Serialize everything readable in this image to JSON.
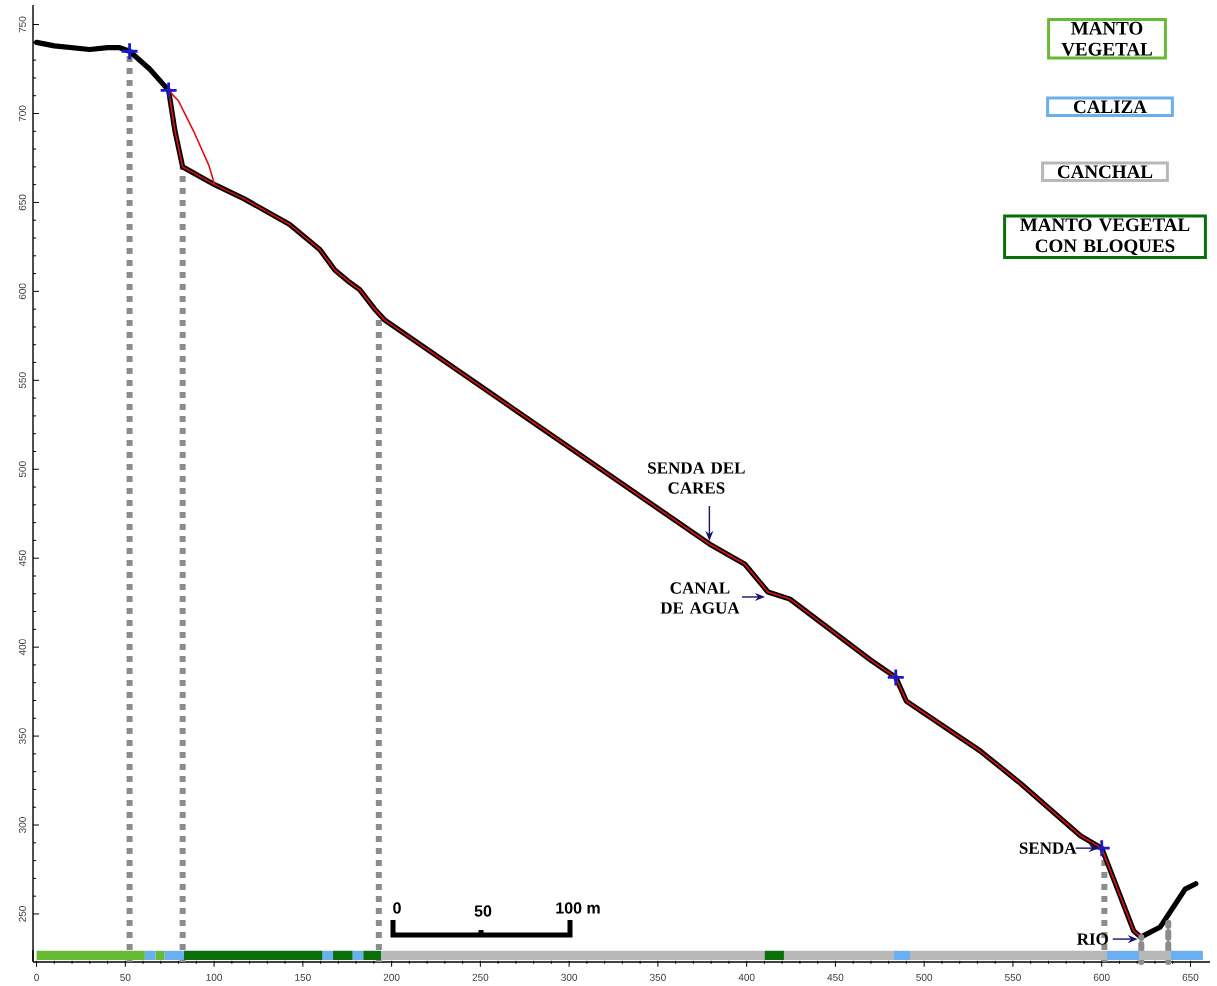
{
  "chart_data": [
    {
      "type": "line",
      "xlim": [
        -2,
        661
      ],
      "ylim": [
        223,
        761
      ],
      "yticks": [
        250,
        300,
        350,
        400,
        450,
        500,
        550,
        600,
        650,
        700,
        750
      ],
      "tick_labels": "y",
      "series": [
        {
          "color": "#000000",
          "x": [
            0,
            10,
            20,
            30,
            40,
            46.8,
            52.4,
            63.7,
            74.4,
            78,
            82.3,
            100.3,
            117,
            142.6,
            159.5,
            168,
            176.4,
            182,
            190.5,
            196,
            379,
            399,
            412,
            424.4,
            469.5,
            484,
            489.9,
            531.6,
            554,
            588,
            600,
            618,
            622,
            633,
            641.5,
            647,
            653
          ],
          "values": [
            740,
            738,
            737,
            736,
            737,
            737,
            735,
            725,
            713,
            690,
            670,
            660,
            652,
            637.6,
            623.6,
            612,
            605,
            601,
            590,
            584,
            458,
            446.6,
            431,
            427,
            393,
            383,
            369.7,
            341.6,
            323.6,
            294,
            287,
            240.5,
            237,
            242.7,
            255.6,
            264,
            267
          ]
        },
        {
          "color": "#e01010",
          "x": [
            74.4,
            78,
            82.3,
            100.3,
            117,
            142.6,
            159.5,
            168,
            176.4,
            182,
            190.5,
            196,
            379,
            399,
            412,
            424.4,
            469.5,
            484,
            489.9,
            531.6,
            554,
            588,
            600,
            618,
            622
          ],
          "values": [
            713,
            690,
            670,
            660,
            652,
            637.6,
            623.6,
            612,
            605,
            601,
            590,
            584,
            458,
            446.6,
            431,
            427,
            393,
            383,
            369.7,
            341.6,
            323.6,
            294,
            287,
            240.5,
            237
          ]
        },
        {
          "color": "#e01010",
          "x": [
            74.4,
            80,
            88.5,
            97,
            100.3
          ],
          "values": [
            713,
            707,
            690,
            671,
            660
          ]
        },
        {
          "line_style": "dotted",
          "color": "#8c8c8c",
          "x": [
            622.3,
            622.3
          ],
          "values": [
            223,
            237
          ]
        },
        {
          "line_style": "dotted",
          "color": "#8c8c8c",
          "x": [
            637.5,
            637.5
          ],
          "values": [
            223,
            245
          ]
        },
        {
          "type": "scatter",
          "marker": "cross",
          "color": "#1a1acc",
          "x": [
            52.4,
            74.4,
            484,
            600
          ],
          "values": [
            735,
            713,
            383,
            287
          ]
        }
      ],
      "ref_lines": [
        {
          "axis": "x",
          "value": 52.4,
          "color": "#8c8c8c",
          "line_style": "dotted"
        },
        {
          "axis": "x",
          "value": 82.3,
          "color": "#8c8c8c",
          "line_style": "dotted"
        },
        {
          "axis": "x",
          "value": 192.8,
          "color": "#8c8c8c",
          "line_style": "dotted"
        },
        {
          "axis": "x",
          "value": 601.5,
          "color": "#8c8c8c",
          "line_style": "dotted"
        }
      ],
      "annotations": [
        {
          "text": "SENDA DEL CARES",
          "x": 379,
          "y": 458
        },
        {
          "text": "CANAL DE AGUA",
          "x": 412,
          "y": 431
        },
        {
          "text": "SENDA",
          "x": 600,
          "y": 287
        },
        {
          "text": "RIO",
          "x": 622,
          "y": 237
        },
        "0",
        "50",
        "100 m"
      ]
    },
    {
      "type": "bar",
      "orientation": "horizontal",
      "stacked": true,
      "categories": [
        null
      ],
      "xlim": [
        -2,
        661
      ],
      "xticks": [
        0,
        50,
        100,
        150,
        200,
        250,
        300,
        350,
        400,
        450,
        500,
        550,
        600,
        650
      ],
      "tick_labels": "x",
      "legend": "top right",
      "series": [
        {
          "name": "MANTO VEGETAL",
          "color": "#66bb33",
          "values": [
            61
          ]
        },
        {
          "name": "CALIZA",
          "color": "#6ab0f0",
          "values": [
            6
          ]
        },
        {
          "color": "#66bb33",
          "values": [
            5
          ]
        },
        {
          "color": "#6ab0f0",
          "values": [
            11
          ]
        },
        {
          "color": "#0a6e0a",
          "values": [
            78
          ]
        },
        {
          "color": "#6ab0f0",
          "values": [
            6
          ]
        },
        {
          "color": "#0a6e0a",
          "values": [
            11
          ]
        },
        {
          "color": "#6ab0f0",
          "values": [
            6
          ]
        },
        {
          "color": "#0a6e0a",
          "values": [
            10
          ]
        },
        {
          "name": "CANCHAL",
          "color": "#b8b8b8",
          "values": [
            216
          ]
        },
        {
          "name": "MANTO VEGETAL CON BLOQUES",
          "color": "#0a6e0a",
          "values": [
            11
          ]
        },
        {
          "color": "#b8b8b8",
          "values": [
            62
          ]
        },
        {
          "color": "#6ab0f0",
          "values": [
            9
          ]
        },
        {
          "color": "#b8b8b8",
          "values": [
            111
          ]
        },
        {
          "color": "#6ab0f0",
          "values": [
            18
          ]
        },
        {
          "color": "#b8b8b8",
          "values": [
            18
          ]
        },
        {
          "color": "#6ab0f0",
          "values": [
            18
          ]
        }
      ]
    }
  ]
}
